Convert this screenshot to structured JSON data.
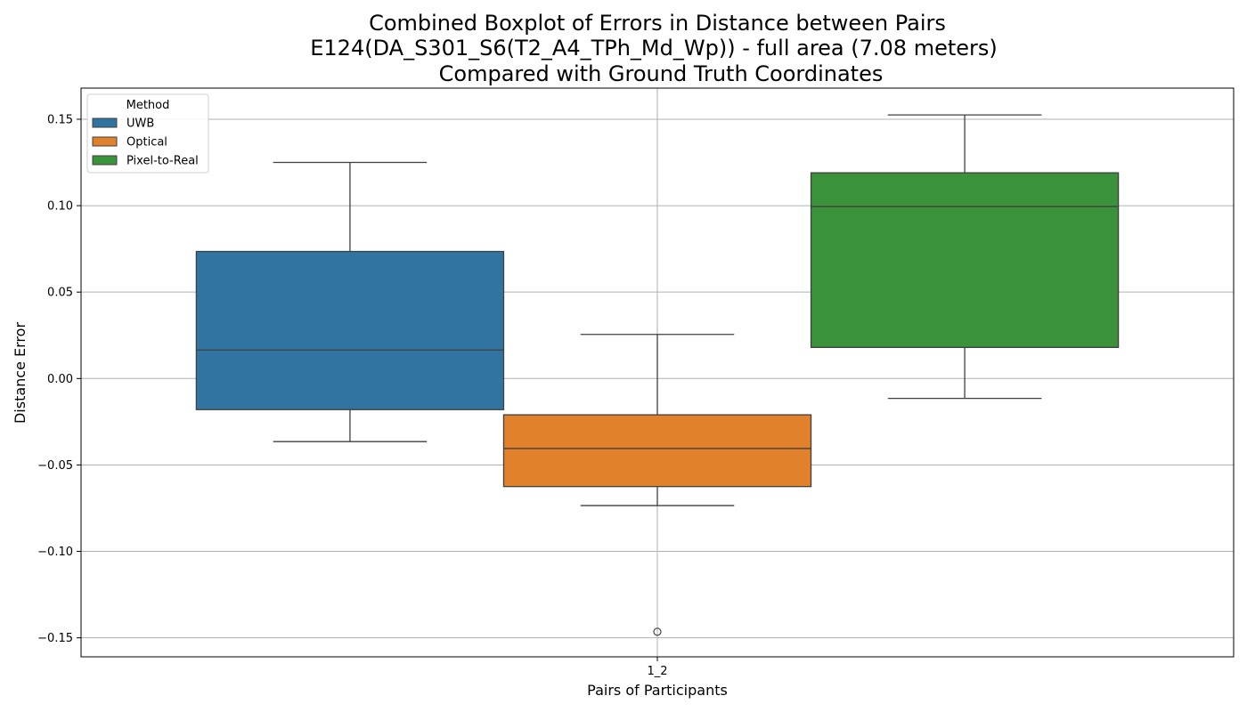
{
  "chart_data": {
    "type": "box",
    "title": [
      "Combined Boxplot of Errors in Distance between Pairs",
      "E124(DA_S301_S6(T2_A4_TPh_Md_Wp)) - full area (7.08 meters)",
      "Compared with Ground Truth Coordinates"
    ],
    "xlabel": "Pairs of Participants",
    "ylabel": "Distance Error",
    "categories": [
      "1_2"
    ],
    "ylim": [
      -0.161,
      0.168
    ],
    "yticks": [
      -0.15,
      -0.1,
      -0.05,
      0.0,
      0.05,
      0.1,
      0.15
    ],
    "ytick_labels": [
      "−0.15",
      "−0.10",
      "−0.05",
      "0.00",
      "0.05",
      "0.10",
      "0.15"
    ],
    "grid": true,
    "legend": {
      "title": "Method",
      "placement": "top-left",
      "entries": [
        "UWB",
        "Optical",
        "Pixel-to-Real"
      ]
    },
    "series": [
      {
        "name": "UWB",
        "color": "#3274a1",
        "whisker_low": -0.0365,
        "q1": -0.018,
        "median": 0.0165,
        "q3": 0.0735,
        "whisker_high": 0.125,
        "outliers": []
      },
      {
        "name": "Optical",
        "color": "#e1812c",
        "whisker_low": -0.0735,
        "q1": -0.0625,
        "median": -0.0405,
        "q3": -0.021,
        "whisker_high": 0.0255,
        "outliers": [
          -0.1465
        ]
      },
      {
        "name": "Pixel-to-Real",
        "color": "#3a923a",
        "whisker_low": -0.0115,
        "q1": 0.018,
        "median": 0.0995,
        "q3": 0.119,
        "whisker_high": 0.1525,
        "outliers": []
      }
    ]
  }
}
